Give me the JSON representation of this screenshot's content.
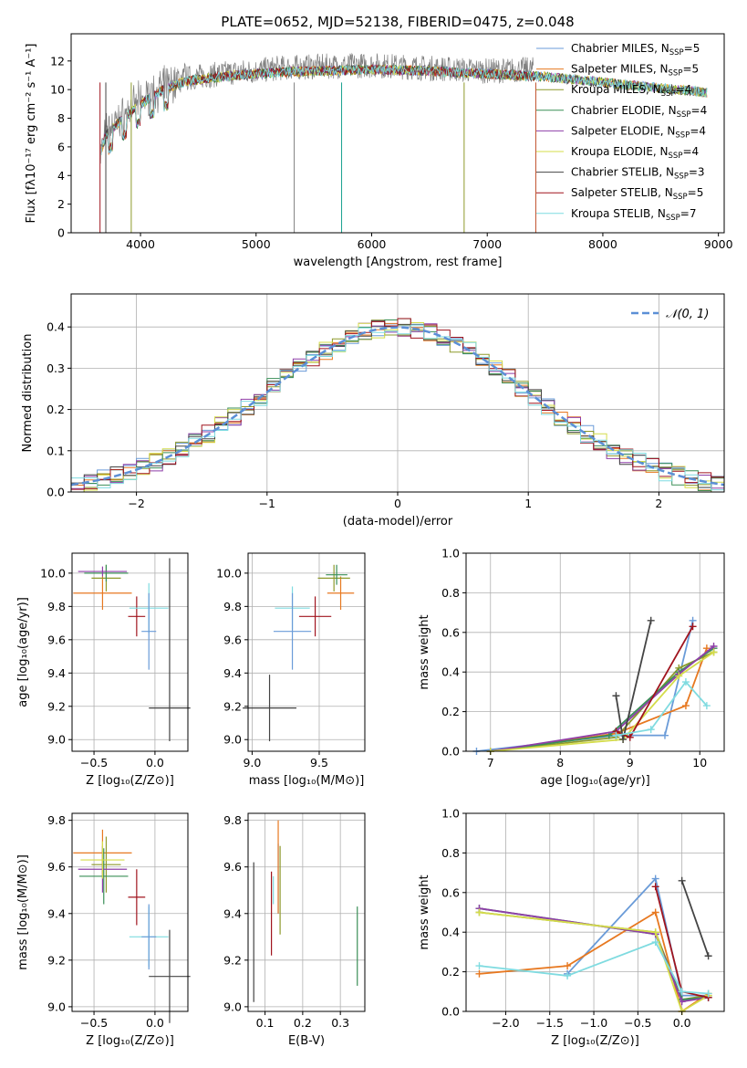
{
  "title": "PLATE=0652, MJD=52138, FIBERID=0475, z=0.048",
  "colors": [
    "#1f77b4",
    "#ff7f0e",
    "#2ca02c",
    "#d62728",
    "#9467bd",
    "#8c564b",
    "#e377c2",
    "#7f7f7f",
    "#bcbd22",
    "#17becf"
  ],
  "legend_models": [
    {
      "label": "Chabrier MILES, N",
      "sub": "SSP",
      "tail": "=5",
      "color": "#6a9bd8"
    },
    {
      "label": "Salpeter MILES, N",
      "sub": "SSP",
      "tail": "=5",
      "color": "#e77820"
    },
    {
      "label": "Kroupa MILES, N",
      "sub": "SSP",
      "tail": "=4",
      "color": "#8e9a2b"
    },
    {
      "label": "Chabrier ELODIE, N",
      "sub": "SSP",
      "tail": "=4",
      "color": "#3a8f57"
    },
    {
      "label": "Salpeter ELODIE, N",
      "sub": "SSP",
      "tail": "=4",
      "color": "#8e3fa8"
    },
    {
      "label": "Kroupa ELODIE, N",
      "sub": "SSP",
      "tail": "=4",
      "color": "#d4dc4a"
    },
    {
      "label": "Chabrier STELIB, N",
      "sub": "SSP",
      "tail": "=3",
      "color": "#444444"
    },
    {
      "label": "Salpeter STELIB, N",
      "sub": "SSP",
      "tail": "=5",
      "color": "#a0141e"
    },
    {
      "label": "Kroupa STELIB, N",
      "sub": "SSP",
      "tail": "=7",
      "color": "#7fdbe0"
    }
  ],
  "chart_data": [
    {
      "id": "spectrum",
      "type": "line",
      "title": "PLATE=0652, MJD=52138, FIBERID=0475, z=0.048",
      "xlabel": "wavelength [Angstrom, rest frame]",
      "ylabel": "Flux [fλ10⁻¹⁷ erg cm⁻² s⁻¹ A⁻¹]",
      "xlim": [
        3400,
        9050
      ],
      "ylim": [
        0,
        13.9
      ],
      "xticks": [
        4000,
        5000,
        6000,
        7000,
        8000,
        9000
      ],
      "yticks": [
        0,
        2,
        4,
        6,
        8,
        10,
        12
      ],
      "data_x": [
        3650,
        3700,
        3800,
        3900,
        4000,
        4200,
        4400,
        4600,
        4800,
        5000,
        5200,
        5500,
        6000,
        6500,
        7000,
        7400
      ],
      "data_y": [
        5.5,
        7.0,
        7.8,
        8.5,
        9.2,
        10.2,
        10.8,
        11.0,
        11.2,
        11.3,
        11.5,
        11.6,
        11.7,
        11.5,
        11.3,
        11.4
      ],
      "model_x": [
        3650,
        3700,
        3800,
        3900,
        4000,
        4200,
        4400,
        4600,
        4800,
        5000,
        5200,
        5500,
        6000,
        6500,
        7000,
        7500,
        8000,
        8500,
        8900
      ],
      "model_y": [
        5.5,
        6.8,
        7.6,
        8.3,
        9.0,
        10.0,
        10.6,
        10.8,
        11.0,
        11.1,
        11.2,
        11.3,
        11.4,
        11.3,
        11.1,
        10.9,
        10.5,
        10.1,
        9.8
      ],
      "grid": false,
      "legend": "right"
    },
    {
      "id": "residuals",
      "type": "bar",
      "xlabel": "(data-model)/error",
      "ylabel": "Normed distribution",
      "xlim": [
        -2.5,
        2.5
      ],
      "ylim": [
        0,
        0.48
      ],
      "xticks": [
        -2,
        -1,
        0,
        1,
        2
      ],
      "yticks": [
        0.0,
        0.1,
        0.2,
        0.3,
        0.4
      ],
      "bin_width": 0.1,
      "reference_label": "𝒩(0, 1)",
      "grid": true,
      "legend": "top-right"
    },
    {
      "id": "age-Z",
      "type": "scatter",
      "xlabel": "Z [log₁₀(Z/Z⊙)]",
      "ylabel": "age  [log₁₀(age/yr)]",
      "xlim": [
        -0.68,
        0.27
      ],
      "ylim": [
        8.93,
        10.12
      ],
      "xticks": [
        -0.5,
        0.0
      ],
      "yticks": [
        9.0,
        9.2,
        9.4,
        9.6,
        9.8,
        10.0
      ],
      "points": [
        {
          "x": 0.12,
          "y": 9.19,
          "xerr": 0.17,
          "yerr": 0.2,
          "yerr_top": 0.9
        },
        {
          "x": -0.15,
          "y": 9.74,
          "xerr": 0.07,
          "yerr": 0.12
        },
        {
          "x": -0.05,
          "y": 9.79,
          "xerr": 0.16,
          "yerr": 0.15
        },
        {
          "x": -0.05,
          "y": 9.65,
          "xerr": 0.06,
          "yerr": 0.23
        },
        {
          "x": -0.43,
          "y": 9.88,
          "xerr": 0.24,
          "yerr": 0.1
        },
        {
          "x": -0.4,
          "y": 9.97,
          "xerr": 0.12,
          "yerr": 0.08
        },
        {
          "x": -0.4,
          "y": 10.0,
          "xerr": 0.18,
          "yerr": 0.05
        },
        {
          "x": -0.43,
          "y": 10.01,
          "xerr": 0.2,
          "yerr": 0.03
        }
      ]
    },
    {
      "id": "age-mass",
      "type": "scatter",
      "xlabel": "mass [log₁₀(M/M⊙)]",
      "ylabel": "",
      "xlim": [
        8.97,
        9.84
      ],
      "ylim": [
        8.93,
        10.12
      ],
      "xticks": [
        9.0,
        9.5
      ],
      "yticks": [
        9.0,
        9.2,
        9.4,
        9.6,
        9.8,
        10.0
      ],
      "points": [
        {
          "x": 9.13,
          "y": 9.19,
          "xerr": 0.2,
          "yerr": 0.2
        },
        {
          "x": 9.47,
          "y": 9.74,
          "xerr": 0.12,
          "yerr": 0.12
        },
        {
          "x": 9.3,
          "y": 9.79,
          "xerr": 0.13,
          "yerr": 0.13
        },
        {
          "x": 9.3,
          "y": 9.65,
          "xerr": 0.14,
          "yerr": 0.23
        },
        {
          "x": 9.66,
          "y": 9.88,
          "xerr": 0.1,
          "yerr": 0.1
        },
        {
          "x": 9.61,
          "y": 9.97,
          "xerr": 0.12,
          "yerr": 0.08
        },
        {
          "x": 9.63,
          "y": 9.99,
          "xerr": 0.08,
          "yerr": 0.06
        }
      ]
    },
    {
      "id": "mass-weight-age",
      "type": "line",
      "xlabel": "age  [log₁₀(age/yr)]",
      "ylabel": "mass weight",
      "xlim": [
        6.65,
        10.35
      ],
      "ylim": [
        0,
        1.0
      ],
      "xticks": [
        7,
        8,
        9,
        10
      ],
      "yticks": [
        0.0,
        0.2,
        0.4,
        0.6,
        0.8,
        1.0
      ],
      "series": [
        {
          "x": [
            6.8,
            8.8,
            9.5,
            9.9
          ],
          "y": [
            0.0,
            0.08,
            0.08,
            0.66
          ]
        },
        {
          "x": [
            7.0,
            8.8,
            9.8,
            10.1
          ],
          "y": [
            0.0,
            0.09,
            0.23,
            0.52
          ]
        },
        {
          "x": [
            7.0,
            8.8,
            9.7,
            10.2
          ],
          "y": [
            0.0,
            0.07,
            0.42,
            0.5
          ]
        },
        {
          "x": [
            7.0,
            8.7,
            9.7,
            10.2
          ],
          "y": [
            0.0,
            0.08,
            0.4,
            0.52
          ]
        },
        {
          "x": [
            7.0,
            8.8,
            9.7,
            10.2
          ],
          "y": [
            0.0,
            0.1,
            0.39,
            0.53
          ]
        },
        {
          "x": [
            7.0,
            8.9,
            9.7,
            10.2
          ],
          "y": [
            0.0,
            0.06,
            0.38,
            0.5
          ]
        },
        {
          "x": [
            8.8,
            8.9,
            9.3
          ],
          "y": [
            0.28,
            0.06,
            0.66
          ]
        },
        {
          "x": [
            8.8,
            9.0,
            9.9
          ],
          "y": [
            0.1,
            0.07,
            0.63
          ]
        },
        {
          "x": [
            8.8,
            9.3,
            9.8,
            10.1
          ],
          "y": [
            0.08,
            0.11,
            0.35,
            0.23
          ]
        }
      ]
    },
    {
      "id": "mass-Z",
      "type": "scatter",
      "xlabel": "Z [log₁₀(Z/Z⊙)]",
      "ylabel": "mass [log₁₀(M/M⊙)]",
      "xlim": [
        -0.68,
        0.27
      ],
      "ylim": [
        8.98,
        9.83
      ],
      "xticks": [
        -0.5,
        0.0
      ],
      "yticks": [
        9.0,
        9.2,
        9.4,
        9.6,
        9.8
      ],
      "points": [
        {
          "x": 0.12,
          "y": 9.13,
          "xerr": 0.17,
          "yerr": 0.2
        },
        {
          "x": -0.15,
          "y": 9.47,
          "xerr": 0.07,
          "yerr": 0.12
        },
        {
          "x": -0.05,
          "y": 9.3,
          "xerr": 0.16,
          "yerr": 0.13
        },
        {
          "x": -0.05,
          "y": 9.3,
          "xerr": 0.06,
          "yerr": 0.14
        },
        {
          "x": -0.43,
          "y": 9.66,
          "xerr": 0.24,
          "yerr": 0.1
        },
        {
          "x": -0.4,
          "y": 9.61,
          "xerr": 0.12,
          "yerr": 0.12
        },
        {
          "x": -0.42,
          "y": 9.56,
          "xerr": 0.2,
          "yerr": 0.12
        },
        {
          "x": -0.43,
          "y": 9.59,
          "xerr": 0.2,
          "yerr": 0.1
        },
        {
          "x": -0.43,
          "y": 9.63,
          "xerr": 0.18,
          "yerr": 0.08
        }
      ]
    },
    {
      "id": "mass-ebv",
      "type": "scatter",
      "xlabel": "E(B-V)",
      "ylabel": "",
      "xlim": [
        0.055,
        0.365
      ],
      "ylim": [
        8.98,
        9.83
      ],
      "xticks": [
        0.1,
        0.2,
        0.3
      ],
      "yticks": [
        9.0,
        9.2,
        9.4,
        9.6,
        9.8
      ],
      "points": [
        {
          "x": 0.07,
          "y": 9.32,
          "yerr": 0.3
        },
        {
          "x": 0.117,
          "y": 9.4,
          "yerr": 0.18
        },
        {
          "x": 0.122,
          "y": 9.5,
          "yerr": 0.06
        },
        {
          "x": 0.135,
          "y": 9.55,
          "yerr": 0.15
        },
        {
          "x": 0.135,
          "y": 9.6,
          "yerr": 0.2
        },
        {
          "x": 0.14,
          "y": 9.5,
          "yerr": 0.19
        },
        {
          "x": 0.345,
          "y": 9.26,
          "yerr": 0.17
        }
      ]
    },
    {
      "id": "mass-weight-Z",
      "type": "line",
      "xlabel": "Z [log₁₀(Z/Z⊙)]",
      "ylabel": "mass weight",
      "xlim": [
        -2.45,
        0.48
      ],
      "ylim": [
        0,
        1.0
      ],
      "xticks": [
        -2.0,
        -1.5,
        -1.0,
        -0.5,
        0.0
      ],
      "yticks": [
        0.0,
        0.2,
        0.4,
        0.6,
        0.8,
        1.0
      ],
      "series": [
        {
          "x": [
            -1.3,
            -0.3,
            0.0,
            0.3
          ],
          "y": [
            0.19,
            0.67,
            0.08,
            0.08
          ]
        },
        {
          "x": [
            -2.3,
            -1.3,
            -0.3,
            0.0,
            0.3
          ],
          "y": [
            0.19,
            0.23,
            0.5,
            0.0,
            0.09
          ]
        },
        {
          "x": [
            -2.3,
            -0.3,
            0.0,
            0.3
          ],
          "y": [
            0.5,
            0.4,
            0.06,
            0.08
          ]
        },
        {
          "x": [
            -2.3,
            -0.3,
            0.0,
            0.3
          ],
          "y": [
            0.52,
            0.39,
            0.06,
            0.07
          ]
        },
        {
          "x": [
            -2.3,
            -0.3,
            0.0,
            0.3
          ],
          "y": [
            0.52,
            0.39,
            0.05,
            0.07
          ]
        },
        {
          "x": [
            -2.3,
            -0.3,
            0.0,
            0.3
          ],
          "y": [
            0.5,
            0.4,
            0.0,
            0.08
          ]
        },
        {
          "x": [
            0.0,
            0.3
          ],
          "y": [
            0.66,
            0.28
          ]
        },
        {
          "x": [
            -0.3,
            0.0,
            0.3
          ],
          "y": [
            0.63,
            0.1,
            0.07
          ]
        },
        {
          "x": [
            -2.3,
            -1.3,
            -0.3,
            0.0,
            0.3
          ],
          "y": [
            0.23,
            0.18,
            0.35,
            0.1,
            0.09
          ]
        }
      ]
    }
  ]
}
